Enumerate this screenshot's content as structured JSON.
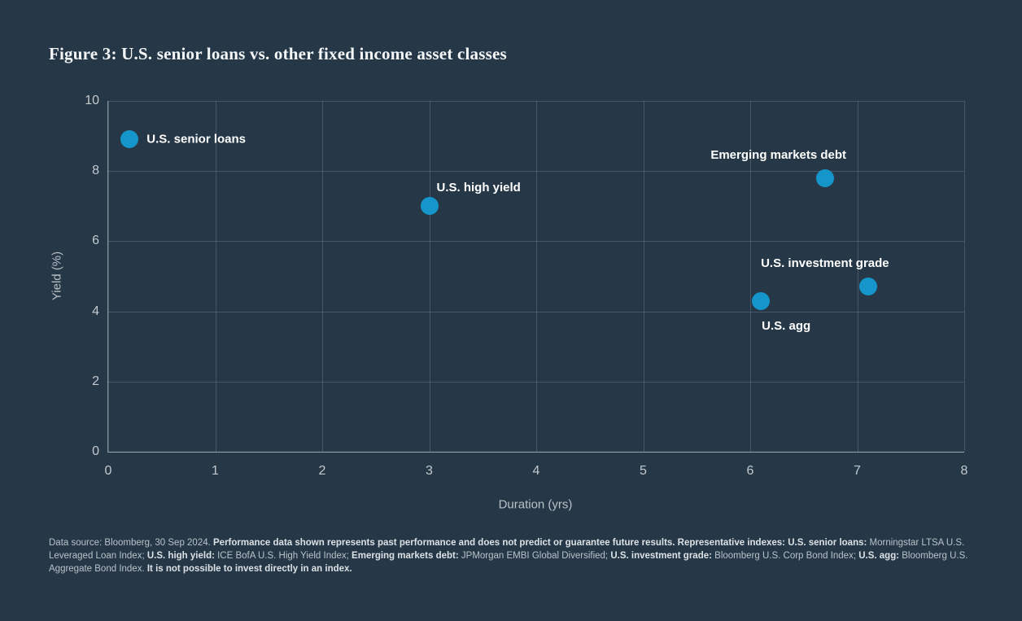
{
  "figure": {
    "title": "Figure 3: U.S. senior loans vs. other fixed income asset classes"
  },
  "colors": {
    "background": "#263847",
    "marker": "#1596ca",
    "point_label": "#ffffff",
    "tick_label": "#c3c9ce",
    "title": "#f4f6f8"
  },
  "chart_data": {
    "type": "scatter",
    "title": "Figure 3: U.S. senior loans vs. other fixed income asset classes",
    "xlabel": "Duration (yrs)",
    "ylabel": "Yield (%)",
    "xlim": [
      0,
      8
    ],
    "ylim": [
      0,
      10
    ],
    "x_ticks": [
      0,
      1,
      2,
      3,
      4,
      5,
      6,
      7,
      8
    ],
    "y_ticks": [
      0,
      2,
      4,
      6,
      8,
      10
    ],
    "grid": true,
    "legend": "none",
    "points": [
      {
        "label": "U.S. senior loans",
        "x": 0.2,
        "y": 8.9,
        "label_placement": "right"
      },
      {
        "label": "U.S. high yield",
        "x": 3.0,
        "y": 7.0,
        "label_placement": "above-right"
      },
      {
        "label": "Emerging markets debt",
        "x": 6.7,
        "y": 7.8,
        "label_placement": "above-left"
      },
      {
        "label": "U.S. agg",
        "x": 6.1,
        "y": 4.3,
        "label_placement": "below"
      },
      {
        "label": "U.S. investment grade",
        "x": 7.1,
        "y": 4.7,
        "label_placement": "above-left"
      }
    ]
  },
  "footnote": {
    "segments": [
      {
        "text": "Data source: Bloomberg, 30 Sep 2024. ",
        "bold": false
      },
      {
        "text": "Performance data shown represents past performance and does not predict or guarantee future results. Representative indexes: U.S. senior loans:",
        "bold": true
      },
      {
        "text": " Morningstar LTSA U.S. Leveraged Loan Index; ",
        "bold": false
      },
      {
        "text": "U.S. high yield:",
        "bold": true
      },
      {
        "text": " ICE BofA U.S. High Yield Index; ",
        "bold": false
      },
      {
        "text": "Emerging markets debt:",
        "bold": true
      },
      {
        "text": " JPMorgan EMBI Global Diversified; ",
        "bold": false
      },
      {
        "text": "U.S. investment grade:",
        "bold": true
      },
      {
        "text": " Bloomberg U.S. Corp Bond Index; ",
        "bold": false
      },
      {
        "text": "U.S. agg:",
        "bold": true
      },
      {
        "text": " Bloomberg U.S. Aggregate Bond Index. ",
        "bold": false
      },
      {
        "text": "It is not possible to invest directly in an index.",
        "bold": true
      }
    ]
  }
}
